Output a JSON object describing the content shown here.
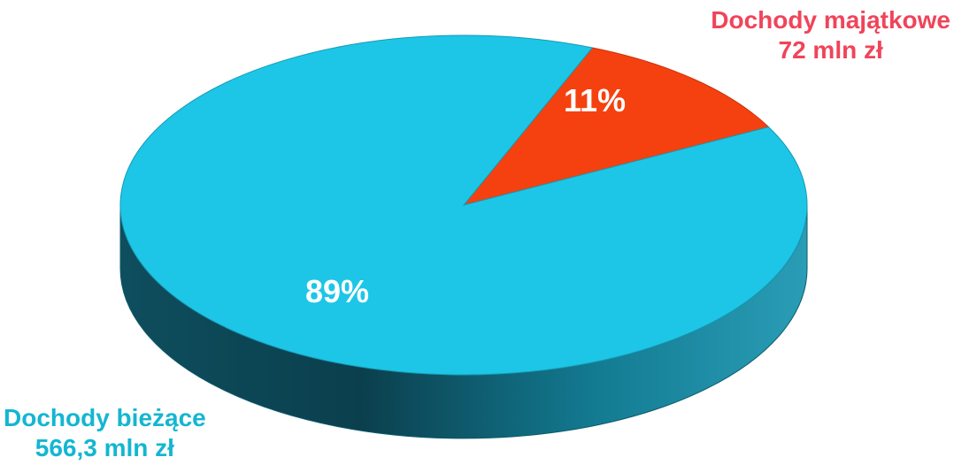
{
  "chart_data": {
    "type": "pie",
    "style": "3d",
    "slices": [
      {
        "name": "Dochody bieżące",
        "value": 566.3,
        "value_label": "566,3 mln zł",
        "percent": 89,
        "percent_label": "89%",
        "color": "#1DC6E6",
        "side_color": "#1A8FA6",
        "label_color": "#14B6D1"
      },
      {
        "name": "Dochody majątkowe",
        "value": 72,
        "value_label": "72 mln zł",
        "percent": 11,
        "percent_label": "11%",
        "color": "#F5410F",
        "side_color": "#B5300B",
        "label_color": "#F0445A"
      }
    ]
  }
}
